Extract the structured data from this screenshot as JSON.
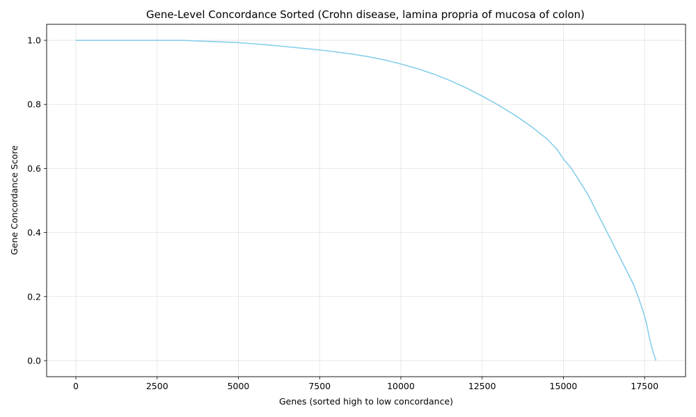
{
  "chart_data": {
    "type": "line",
    "title": "Gene-Level Concordance Sorted (Crohn disease, lamina propria of mucosa of colon)",
    "xlabel": "Genes (sorted high to low concordance)",
    "ylabel": "Gene Concordance Score",
    "xlim": [
      -900,
      18760
    ],
    "ylim": [
      -0.05,
      1.05
    ],
    "xticks": [
      0,
      2500,
      5000,
      7500,
      10000,
      12500,
      15000,
      17500
    ],
    "xtick_labels": [
      "0",
      "2500",
      "5000",
      "7500",
      "10000",
      "12500",
      "15000",
      "17500"
    ],
    "yticks": [
      0.0,
      0.2,
      0.4,
      0.6,
      0.8,
      1.0
    ],
    "ytick_labels": [
      "0.0",
      "0.2",
      "0.4",
      "0.6",
      "0.8",
      "1.0"
    ],
    "grid": true,
    "line_color": "#87ceeb",
    "series": [
      {
        "x": [
          0,
          500,
          1000,
          1500,
          2000,
          2500,
          3000,
          3300,
          3500,
          4000,
          4500,
          5000,
          5500,
          6000,
          6500,
          7000,
          7500,
          8000,
          8500,
          9000,
          9500,
          10000,
          10500,
          11000,
          11500,
          12000,
          12500,
          13000,
          13500,
          14000,
          14500,
          14800,
          15000,
          15250,
          15500,
          15750,
          16000,
          16250,
          16500,
          16750,
          17000,
          17150,
          17300,
          17450,
          17550,
          17650,
          17750,
          17850
        ],
        "y": [
          1.0,
          1.0,
          1.0,
          1.0,
          1.0,
          1.0,
          1.0,
          1.0,
          0.999,
          0.997,
          0.995,
          0.993,
          0.989,
          0.985,
          0.98,
          0.975,
          0.97,
          0.964,
          0.957,
          0.949,
          0.939,
          0.926,
          0.912,
          0.895,
          0.875,
          0.852,
          0.826,
          0.798,
          0.767,
          0.732,
          0.692,
          0.66,
          0.63,
          0.6,
          0.56,
          0.52,
          0.47,
          0.42,
          0.37,
          0.32,
          0.27,
          0.24,
          0.2,
          0.155,
          0.12,
          0.07,
          0.03,
          0.0
        ]
      }
    ]
  }
}
